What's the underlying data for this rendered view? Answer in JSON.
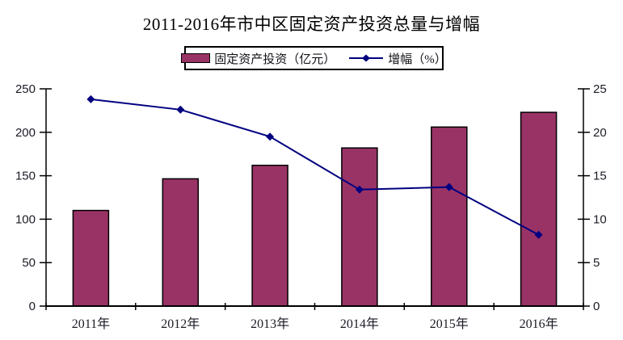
{
  "colors": {
    "bar": "#993366",
    "bar_border": "#000000",
    "line": "#000080",
    "axis": "#000000",
    "text": "#1b1b26"
  },
  "chart_data": {
    "type": "bar+line",
    "title": "2011-2016年市中区固定资产投资总量与增幅",
    "categories": [
      "2011年",
      "2012年",
      "2013年",
      "2014年",
      "2015年",
      "2016年"
    ],
    "series": [
      {
        "name": "固定资产投资（亿元）",
        "type": "bar",
        "axis": "left",
        "values": [
          110,
          146.5,
          162,
          182,
          206,
          223
        ]
      },
      {
        "name": "增幅（%）",
        "type": "line",
        "axis": "right",
        "values": [
          23.8,
          22.6,
          19.5,
          13.4,
          13.7,
          8.2
        ]
      }
    ],
    "left_axis": {
      "min": 0,
      "max": 250,
      "ticks": [
        0,
        50,
        100,
        150,
        200,
        250
      ]
    },
    "right_axis": {
      "min": 0,
      "max": 25,
      "ticks": [
        0,
        5,
        10,
        15,
        20,
        25
      ]
    },
    "grid": false,
    "legend_position": "top"
  }
}
